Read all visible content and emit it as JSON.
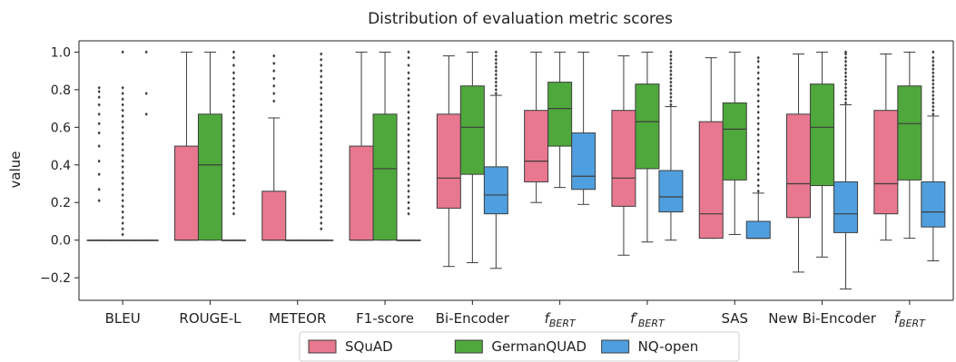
{
  "chart_data": {
    "type": "box",
    "title": "Distribution of evaluation metric scores",
    "ylabel": "value",
    "xlabel": "",
    "ylim": [
      -0.32,
      1.06
    ],
    "yticks": [
      -0.2,
      0.0,
      0.2,
      0.4,
      0.6,
      0.8,
      1.0
    ],
    "yticklabels": [
      "−0.2",
      "0.0",
      "0.2",
      "0.4",
      "0.6",
      "0.8",
      "1.0"
    ],
    "categories": [
      "BLEU",
      "ROUGE-L",
      "METEOR",
      "F1-score",
      "Bi-Encoder",
      "f_BERT",
      "f'_BERT",
      "SAS",
      "New Bi-Encoder",
      "f~_BERT"
    ],
    "category_display": [
      {
        "base": "BLEU"
      },
      {
        "base": "ROUGE-L"
      },
      {
        "base": "METEOR"
      },
      {
        "base": "F1-score"
      },
      {
        "base": "Bi-Encoder"
      },
      {
        "base": "f",
        "sub": "BERT"
      },
      {
        "base": "f′",
        "sub": "BERT"
      },
      {
        "base": "SAS"
      },
      {
        "base": "New Bi-Encoder"
      },
      {
        "base": "f̃",
        "sub": "BERT"
      }
    ],
    "legend": {
      "placement": "bottom-center",
      "entries": [
        "SQuAD",
        "GermanQUAD",
        "NQ-open"
      ]
    },
    "colors": {
      "SQuAD": "#e8788f",
      "GermanQUAD": "#4fa83c",
      "NQ-open": "#4f9fdf",
      "line": "#3d3d3d"
    },
    "series": [
      {
        "name": "SQuAD",
        "boxes": [
          {
            "whislo": 0.0,
            "q1": 0.0,
            "med": 0.0,
            "q3": 0.0,
            "whishi": 0.0,
            "fliers": [
              0.21,
              0.27,
              0.35,
              0.42,
              0.5,
              0.57,
              0.62,
              0.67,
              0.72,
              0.76,
              0.79,
              0.81
            ]
          },
          {
            "whislo": 0.0,
            "q1": 0.0,
            "med": 0.0,
            "q3": 0.5,
            "whishi": 1.0,
            "fliers": []
          },
          {
            "whislo": 0.0,
            "q1": 0.0,
            "med": 0.0,
            "q3": 0.26,
            "whishi": 0.65,
            "fliers": [
              0.74,
              0.78,
              0.82,
              0.86,
              0.9,
              0.94,
              0.98
            ]
          },
          {
            "whislo": 0.0,
            "q1": 0.0,
            "med": 0.0,
            "q3": 0.5,
            "whishi": 1.0,
            "fliers": []
          },
          {
            "whislo": -0.14,
            "q1": 0.17,
            "med": 0.33,
            "q3": 0.67,
            "whishi": 0.98,
            "fliers": []
          },
          {
            "whislo": 0.2,
            "q1": 0.31,
            "med": 0.42,
            "q3": 0.69,
            "whishi": 1.0,
            "fliers": []
          },
          {
            "whislo": -0.08,
            "q1": 0.18,
            "med": 0.33,
            "q3": 0.69,
            "whishi": 0.98,
            "fliers": []
          },
          {
            "whislo": 0.01,
            "q1": 0.01,
            "med": 0.14,
            "q3": 0.63,
            "whishi": 0.97,
            "fliers": []
          },
          {
            "whislo": -0.17,
            "q1": 0.12,
            "med": 0.3,
            "q3": 0.67,
            "whishi": 0.99,
            "fliers": []
          },
          {
            "whislo": 0.0,
            "q1": 0.14,
            "med": 0.3,
            "q3": 0.69,
            "whishi": 0.99,
            "fliers": []
          }
        ]
      },
      {
        "name": "GermanQUAD",
        "boxes": [
          {
            "whislo": 0.0,
            "q1": 0.0,
            "med": 0.0,
            "q3": 0.0,
            "whishi": 0.0,
            "fliers": [
              0.03,
              0.06,
              0.09,
              0.12,
              0.15,
              0.18,
              0.21,
              0.24,
              0.27,
              0.3,
              0.33,
              0.36,
              0.39,
              0.42,
              0.45,
              0.48,
              0.51,
              0.54,
              0.57,
              0.6,
              0.63,
              0.66,
              0.69,
              0.72,
              0.75,
              0.78,
              0.81,
              1.0
            ]
          },
          {
            "whislo": 0.0,
            "q1": 0.0,
            "med": 0.4,
            "q3": 0.67,
            "whishi": 1.0,
            "fliers": []
          },
          {
            "whislo": 0.0,
            "q1": 0.0,
            "med": 0.0,
            "q3": 0.0,
            "whishi": 0.0,
            "fliers": []
          },
          {
            "whislo": 0.0,
            "q1": 0.0,
            "med": 0.38,
            "q3": 0.67,
            "whishi": 1.0,
            "fliers": []
          },
          {
            "whislo": -0.12,
            "q1": 0.35,
            "med": 0.6,
            "q3": 0.82,
            "whishi": 1.0,
            "fliers": []
          },
          {
            "whislo": 0.28,
            "q1": 0.5,
            "med": 0.7,
            "q3": 0.84,
            "whishi": 1.0,
            "fliers": []
          },
          {
            "whislo": -0.01,
            "q1": 0.38,
            "med": 0.63,
            "q3": 0.83,
            "whishi": 1.0,
            "fliers": []
          },
          {
            "whislo": 0.03,
            "q1": 0.32,
            "med": 0.59,
            "q3": 0.73,
            "whishi": 1.0,
            "fliers": []
          },
          {
            "whislo": -0.09,
            "q1": 0.29,
            "med": 0.6,
            "q3": 0.83,
            "whishi": 1.0,
            "fliers": []
          },
          {
            "whislo": 0.01,
            "q1": 0.32,
            "med": 0.62,
            "q3": 0.82,
            "whishi": 1.0,
            "fliers": []
          }
        ]
      },
      {
        "name": "NQ-open",
        "boxes": [
          {
            "whislo": 0.0,
            "q1": 0.0,
            "med": 0.0,
            "q3": 0.0,
            "whishi": 0.0,
            "fliers": [
              0.67,
              0.78,
              1.0
            ]
          },
          {
            "whislo": 0.0,
            "q1": 0.0,
            "med": 0.0,
            "q3": 0.0,
            "whishi": 0.0,
            "fliers": [
              0.14,
              0.17,
              0.2,
              0.23,
              0.26,
              0.29,
              0.32,
              0.35,
              0.38,
              0.41,
              0.44,
              0.47,
              0.5,
              0.53,
              0.56,
              0.59,
              0.62,
              0.65,
              0.68,
              0.71,
              0.74,
              0.77,
              0.8,
              0.83,
              0.86,
              0.89,
              0.93,
              0.97,
              1.0
            ]
          },
          {
            "whislo": 0.0,
            "q1": 0.0,
            "med": 0.0,
            "q3": 0.0,
            "whishi": 0.0,
            "fliers": [
              0.06,
              0.09,
              0.12,
              0.15,
              0.18,
              0.21,
              0.24,
              0.27,
              0.3,
              0.33,
              0.36,
              0.39,
              0.42,
              0.45,
              0.48,
              0.51,
              0.54,
              0.57,
              0.6,
              0.63,
              0.66,
              0.69,
              0.72,
              0.75,
              0.78,
              0.81,
              0.84,
              0.87,
              0.9,
              0.93,
              0.96,
              0.99
            ]
          },
          {
            "whislo": 0.0,
            "q1": 0.0,
            "med": 0.0,
            "q3": 0.0,
            "whishi": 0.0,
            "fliers": [
              0.14,
              0.17,
              0.2,
              0.23,
              0.26,
              0.29,
              0.32,
              0.35,
              0.38,
              0.41,
              0.44,
              0.47,
              0.5,
              0.53,
              0.56,
              0.59,
              0.62,
              0.65,
              0.68,
              0.71,
              0.74,
              0.77,
              0.8,
              0.83,
              0.86,
              0.89,
              0.93,
              0.97,
              1.0
            ]
          },
          {
            "whislo": -0.15,
            "q1": 0.14,
            "med": 0.24,
            "q3": 0.39,
            "whishi": 0.77,
            "fliers": [
              0.78,
              0.8,
              0.82,
              0.84,
              0.86,
              0.88,
              0.9,
              0.92,
              0.94,
              0.96,
              0.98,
              1.0
            ]
          },
          {
            "whislo": 0.19,
            "q1": 0.27,
            "med": 0.34,
            "q3": 0.57,
            "whishi": 1.0,
            "fliers": []
          },
          {
            "whislo": 0.0,
            "q1": 0.15,
            "med": 0.23,
            "q3": 0.37,
            "whishi": 0.71,
            "fliers": [
              0.72,
              0.74,
              0.76,
              0.78,
              0.8,
              0.82,
              0.84,
              0.86,
              0.88,
              0.9,
              0.92,
              0.94,
              0.96,
              0.98,
              1.0
            ]
          },
          {
            "whislo": 0.01,
            "q1": 0.01,
            "med": 0.01,
            "q3": 0.1,
            "whishi": 0.25,
            "fliers": [
              0.26,
              0.29,
              0.32,
              0.35,
              0.38,
              0.41,
              0.44,
              0.47,
              0.5,
              0.53,
              0.56,
              0.59,
              0.62,
              0.65,
              0.68,
              0.71,
              0.74,
              0.77,
              0.8,
              0.83,
              0.86,
              0.89,
              0.92,
              0.95,
              0.97
            ]
          },
          {
            "whislo": -0.26,
            "q1": 0.04,
            "med": 0.14,
            "q3": 0.31,
            "whishi": 0.72,
            "fliers": [
              0.73,
              0.75,
              0.77,
              0.79,
              0.81,
              0.83,
              0.85,
              0.87,
              0.89,
              0.91,
              0.93,
              0.95,
              0.97,
              0.99,
              1.0
            ]
          },
          {
            "whislo": -0.11,
            "q1": 0.07,
            "med": 0.15,
            "q3": 0.31,
            "whishi": 0.66,
            "fliers": [
              0.67,
              0.69,
              0.71,
              0.73,
              0.75,
              0.77,
              0.79,
              0.81,
              0.83,
              0.85,
              0.87,
              0.89,
              0.91,
              0.93,
              0.95,
              0.97,
              1.0
            ]
          }
        ]
      }
    ]
  }
}
